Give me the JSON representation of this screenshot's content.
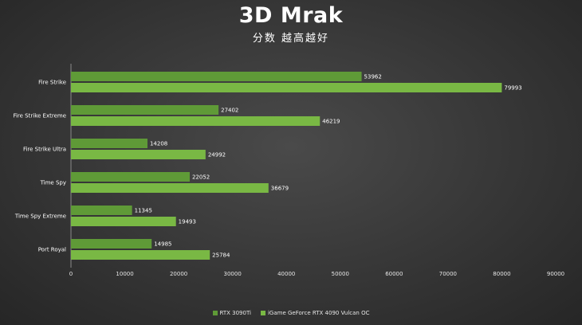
{
  "chart_data": {
    "type": "bar",
    "orientation": "horizontal",
    "title": "3D Mrak",
    "subtitle": "分数 越高越好",
    "categories": [
      "Fire Strike",
      "Fire Strike Extreme",
      "Fire Strike Ultra",
      "Time Spy",
      "Time Spy Extreme",
      "Port Royal"
    ],
    "series": [
      {
        "name": "RTX 3090Ti",
        "color": "#5f9a37",
        "values": [
          53962,
          27402,
          14208,
          22052,
          11345,
          14985
        ]
      },
      {
        "name": "iGame GeForce RTX 4090 Vulcan OC",
        "color": "#79b844",
        "values": [
          79993,
          46219,
          24992,
          36679,
          19493,
          25784
        ]
      }
    ],
    "xlim": [
      0,
      90000
    ],
    "x_ticks": [
      "0",
      "10000",
      "20000",
      "30000",
      "40000",
      "50000",
      "60000",
      "70000",
      "80000",
      "90000"
    ],
    "grid": false,
    "legend_position": "bottom-center"
  }
}
